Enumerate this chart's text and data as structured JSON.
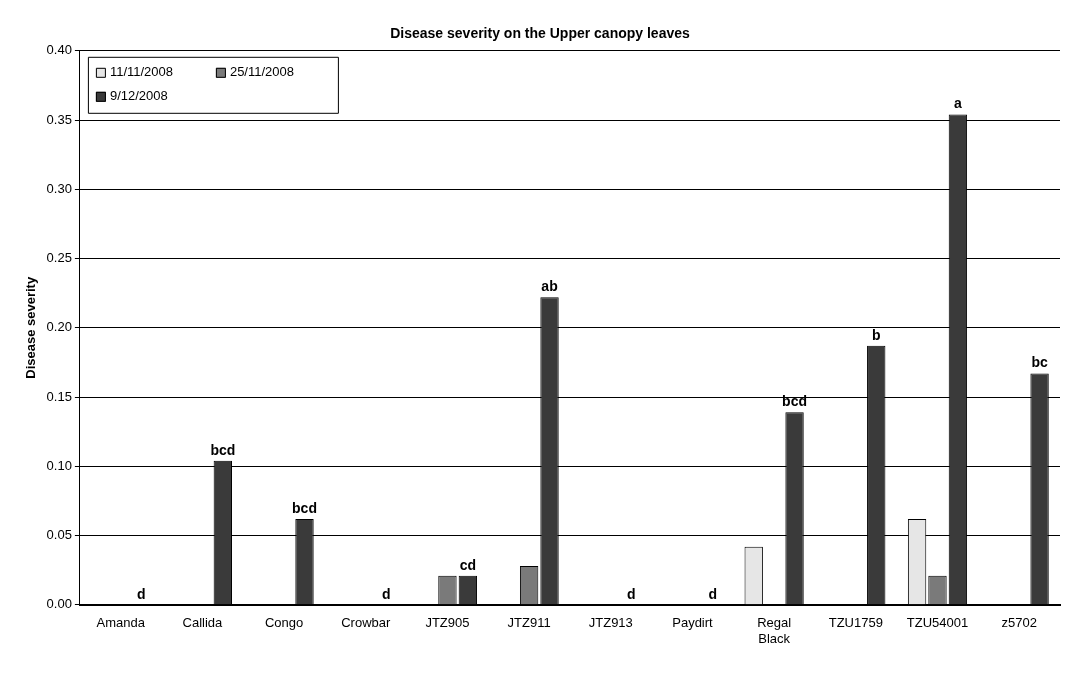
{
  "chart_data": {
    "type": "bar",
    "title": "Disease severity on the Upper canopy leaves",
    "ylabel": "Disease severity",
    "categories": [
      "Amanda",
      "Callida",
      "Congo",
      "Crowbar",
      "JTZ905",
      "JTZ911",
      "JTZ913",
      "Paydirt",
      "Regal Black",
      "TZU1759",
      "TZU54001",
      "z5702"
    ],
    "series": [
      {
        "name": "11/11/2008",
        "color": "#e6e6e6",
        "values": [
          0,
          0,
          0,
          0,
          0,
          0,
          0,
          0,
          0.042,
          0,
          0.062,
          0
        ]
      },
      {
        "name": "25/11/2008",
        "color": "#7a7a7a",
        "values": [
          0,
          0,
          0,
          0,
          0.021,
          0.028,
          0,
          0,
          0,
          0,
          0.021,
          0
        ]
      },
      {
        "name": "9/12/2008",
        "color": "#3a3a3a",
        "values": [
          0,
          0.104,
          0.062,
          0,
          0.021,
          0.222,
          0,
          0,
          0.139,
          0.187,
          0.354,
          0.167
        ]
      }
    ],
    "ylim": [
      0,
      0.4
    ],
    "yticks": [
      {
        "value": 0,
        "label": "0.00"
      },
      0.05,
      {
        "value": 0.1,
        "label": "0.10"
      },
      0.15,
      {
        "value": 0.2,
        "label": "0.20"
      },
      0.25,
      {
        "value": 0.3,
        "label": "0.30"
      },
      0.35,
      {
        "value": 0.4,
        "label": "0.40"
      }
    ],
    "grid": "y",
    "legend": "top left",
    "annotations": [
      "d",
      "bcd",
      "bcd",
      "d",
      "cd",
      "ab",
      "d",
      "d",
      "bcd",
      "b",
      "a",
      "bc"
    ]
  }
}
